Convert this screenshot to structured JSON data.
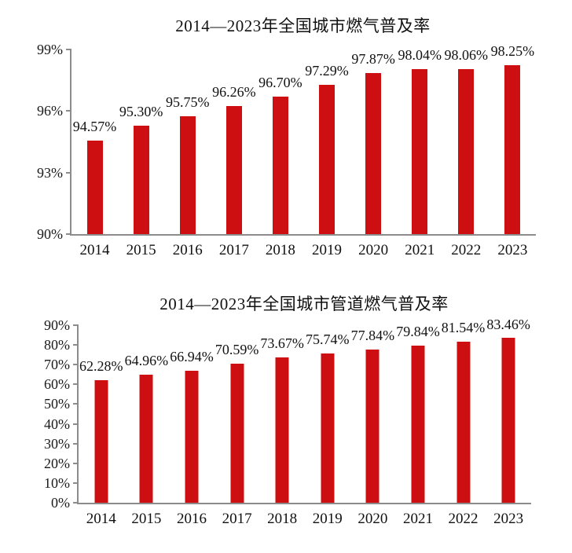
{
  "page": {
    "background": "#ffffff",
    "text_color": "#111111"
  },
  "chart_data": [
    {
      "type": "bar",
      "title": "2014—2023年全国城市燃气普及率",
      "categories": [
        "2014",
        "2015",
        "2016",
        "2017",
        "2018",
        "2019",
        "2020",
        "2021",
        "2022",
        "2023"
      ],
      "values": [
        94.57,
        95.3,
        95.75,
        96.26,
        96.7,
        97.29,
        97.87,
        98.04,
        98.06,
        98.25
      ],
      "value_labels": [
        "94.57%",
        "95.30%",
        "95.75%",
        "96.26%",
        "96.70%",
        "97.29%",
        "97.87%",
        "98.04%",
        "98.06%",
        "98.25%"
      ],
      "xlabel": "",
      "ylabel": "",
      "ylim": [
        90,
        99
      ],
      "ytick_values": [
        90,
        93,
        96,
        99
      ],
      "ytick_labels": [
        "90%",
        "93%",
        "96%",
        "99%"
      ],
      "grid": false,
      "legend": "none",
      "bar_color": "#cd0f12",
      "axis_color": "#8c8c8c"
    },
    {
      "type": "bar",
      "title": "2014—2023年全国城市管道燃气普及率",
      "categories": [
        "2014",
        "2015",
        "2016",
        "2017",
        "2018",
        "2019",
        "2020",
        "2021",
        "2022",
        "2023"
      ],
      "values": [
        62.28,
        64.96,
        66.94,
        70.59,
        73.67,
        75.74,
        77.84,
        79.84,
        81.54,
        83.46
      ],
      "value_labels": [
        "62.28%",
        "64.96%",
        "66.94%",
        "70.59%",
        "73.67%",
        "75.74%",
        "77.84%",
        "79.84%",
        "81.54%",
        "83.46%"
      ],
      "xlabel": "",
      "ylabel": "",
      "ylim": [
        0,
        90
      ],
      "ytick_values": [
        0,
        10,
        20,
        30,
        40,
        50,
        60,
        70,
        80,
        90
      ],
      "ytick_labels": [
        "0%",
        "10%",
        "20%",
        "30%",
        "40%",
        "50%",
        "60%",
        "70%",
        "80%",
        "90%"
      ],
      "grid": false,
      "legend": "none",
      "bar_color": "#cd0f12",
      "axis_color": "#8c8c8c"
    }
  ]
}
